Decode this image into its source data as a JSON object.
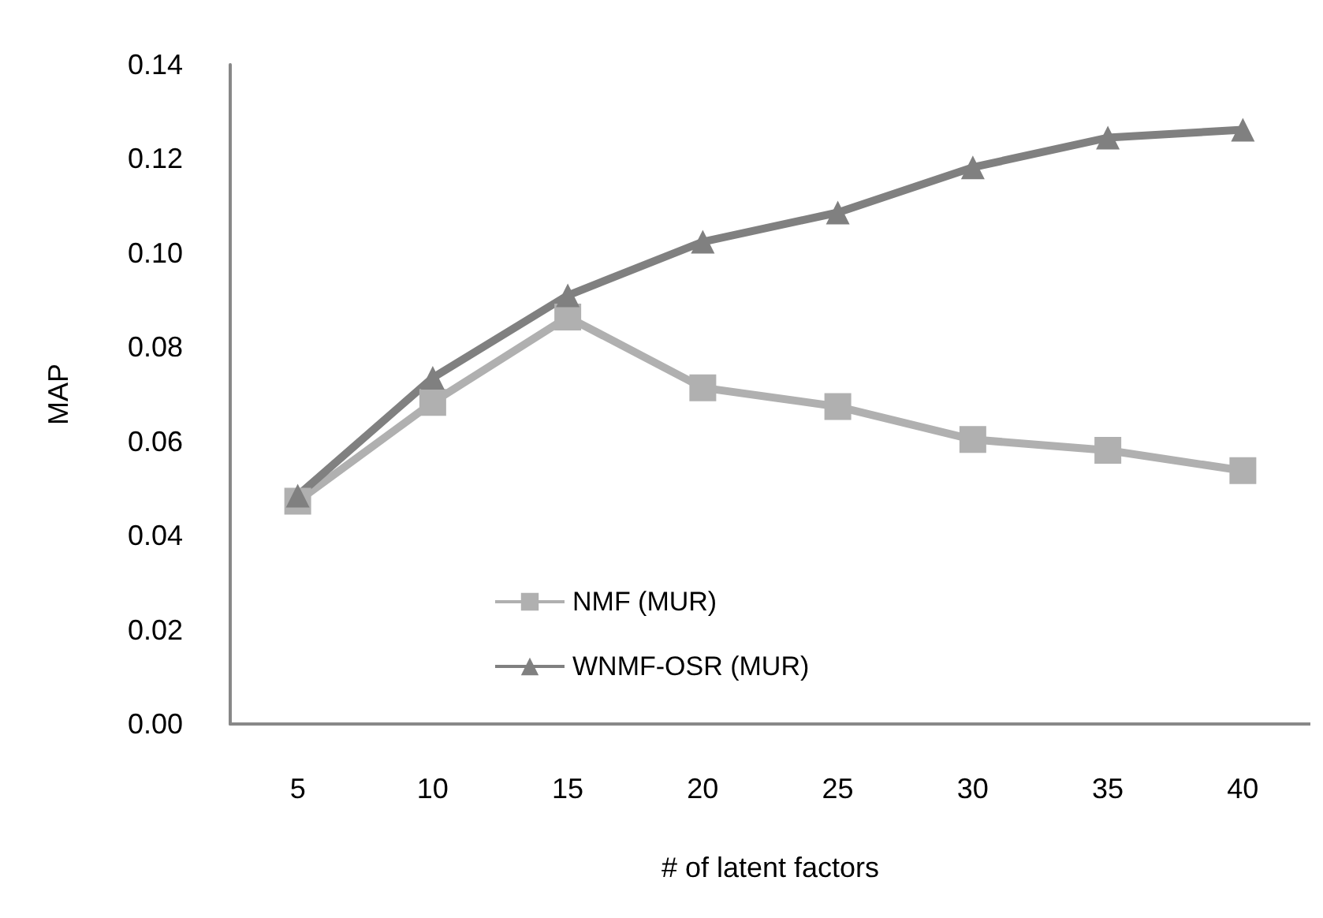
{
  "chart_data": {
    "type": "line",
    "xlabel": "# of latent factors",
    "ylabel": "MAP",
    "categories": [
      "5",
      "10",
      "15",
      "20",
      "25",
      "30",
      "35",
      "40"
    ],
    "series": [
      {
        "name": "NMF (MUR)",
        "color": "#b0b0b0",
        "marker": "square",
        "values": [
          0.0473,
          0.0683,
          0.0864,
          0.0714,
          0.0674,
          0.0604,
          0.0581,
          0.0538
        ]
      },
      {
        "name": "WNMF-OSR (MUR)",
        "color": "#808080",
        "marker": "triangle",
        "values": [
          0.0485,
          0.0735,
          0.091,
          0.1024,
          0.1086,
          0.1182,
          0.1245,
          0.1262
        ]
      }
    ],
    "ylim": [
      0,
      0.14
    ],
    "yticks": [
      {
        "value": 0,
        "label": "0.00"
      },
      0.02,
      0.04,
      0.06,
      0.08,
      {
        "value": 0.1,
        "label": "0.10"
      },
      0.12,
      0.14
    ],
    "grid": false,
    "legend": "bottom left",
    "line_style": "solid"
  }
}
